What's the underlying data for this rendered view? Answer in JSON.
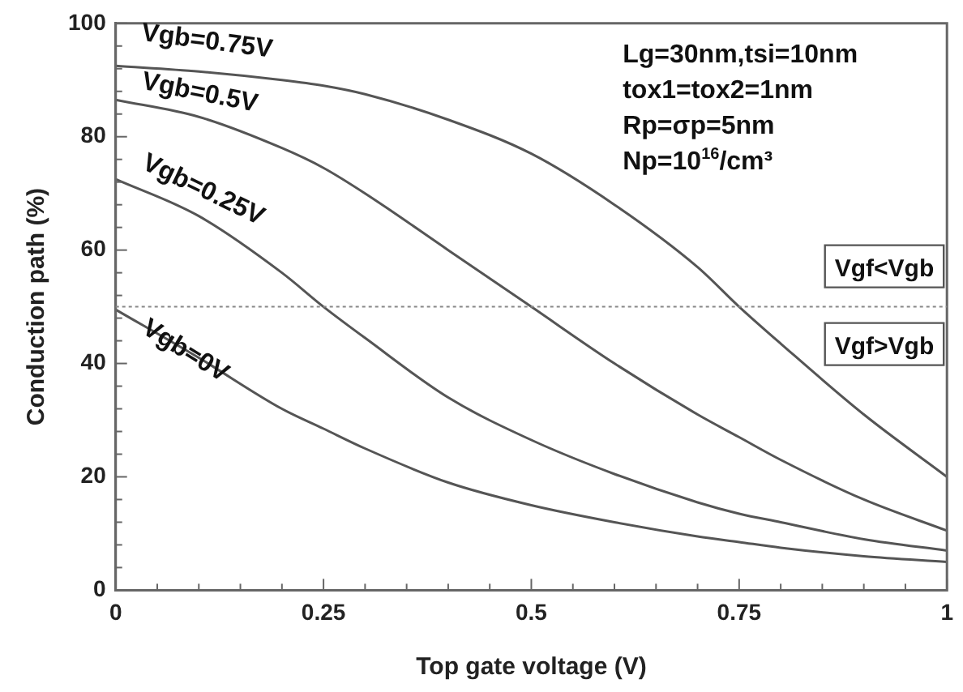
{
  "chart_data": {
    "type": "line",
    "xlabel": "Top gate voltage (V)",
    "ylabel": "Conduction path (%)",
    "xlim": [
      0,
      1
    ],
    "ylim": [
      0,
      100
    ],
    "xticks": [
      0,
      {
        "value": 0.05,
        "label": null
      },
      {
        "value": 0.1,
        "label": null
      },
      {
        "value": 0.15,
        "label": null
      },
      {
        "value": 0.2,
        "label": null
      },
      0.25,
      {
        "value": 0.3,
        "label": null
      },
      {
        "value": 0.35,
        "label": null
      },
      {
        "value": 0.4,
        "label": null
      },
      {
        "value": 0.45,
        "label": null
      },
      0.5,
      {
        "value": 0.55,
        "label": null
      },
      {
        "value": 0.6,
        "label": null
      },
      {
        "value": 0.65,
        "label": null
      },
      {
        "value": 0.7,
        "label": null
      },
      0.75,
      {
        "value": 0.8,
        "label": null
      },
      {
        "value": 0.85,
        "label": null
      },
      {
        "value": 0.9,
        "label": null
      },
      {
        "value": 0.95,
        "label": null
      },
      1
    ],
    "yticks": [
      0,
      {
        "value": 4,
        "label": null
      },
      {
        "value": 8,
        "label": null
      },
      {
        "value": 12,
        "label": null
      },
      {
        "value": 16,
        "label": null
      },
      20,
      {
        "value": 24,
        "label": null
      },
      {
        "value": 28,
        "label": null
      },
      {
        "value": 32,
        "label": null
      },
      {
        "value": 36,
        "label": null
      },
      40,
      {
        "value": 44,
        "label": null
      },
      {
        "value": 48,
        "label": null
      },
      {
        "value": 52,
        "label": null
      },
      {
        "value": 56,
        "label": null
      },
      60,
      {
        "value": 64,
        "label": null
      },
      {
        "value": 68,
        "label": null
      },
      {
        "value": 72,
        "label": null
      },
      {
        "value": 76,
        "label": null
      },
      80,
      {
        "value": 84,
        "label": null
      },
      {
        "value": 88,
        "label": null
      },
      {
        "value": 92,
        "label": null
      },
      {
        "value": 96,
        "label": null
      },
      100
    ],
    "x": [
      0,
      0.1,
      0.2,
      0.25,
      0.3,
      0.4,
      0.5,
      0.6,
      0.7,
      0.75,
      0.8,
      0.9,
      1
    ],
    "series": [
      {
        "name": "Vgb=0.75V",
        "color": "#555555",
        "values": [
          92.5,
          91.5,
          90,
          89,
          87.5,
          83,
          77,
          68,
          57,
          50,
          43.5,
          31,
          20
        ]
      },
      {
        "name": "Vgb=0.5V",
        "color": "#555555",
        "values": [
          86.5,
          83.5,
          78,
          74.5,
          70,
          60,
          50,
          40,
          31,
          27,
          23,
          16,
          10.5
        ]
      },
      {
        "name": "Vgb=0.25V",
        "color": "#555555",
        "values": [
          72.5,
          66,
          56,
          50,
          44.5,
          34,
          26.5,
          20.5,
          15.5,
          13.5,
          12,
          9,
          7
        ]
      },
      {
        "name": "Vgb=0V",
        "color": "#555555",
        "values": [
          49.5,
          41,
          32,
          28.5,
          25,
          19,
          15,
          12,
          9.5,
          8.5,
          7.5,
          6,
          5
        ]
      }
    ],
    "ref_lines": [
      {
        "axis": "y",
        "value": 50,
        "color": "#888888",
        "line_style": "dotted"
      }
    ],
    "annotations": [
      "Lg=30nm,tsi=10nm",
      "tox1=tox2=1nm",
      "Rp=σp=5nm",
      "Np=10$^{16}$/cm³",
      "Vgf<Vgb",
      "Vgf>Vgb"
    ],
    "grid": false,
    "legend": false,
    "marker": "none",
    "line_style": "solid"
  }
}
